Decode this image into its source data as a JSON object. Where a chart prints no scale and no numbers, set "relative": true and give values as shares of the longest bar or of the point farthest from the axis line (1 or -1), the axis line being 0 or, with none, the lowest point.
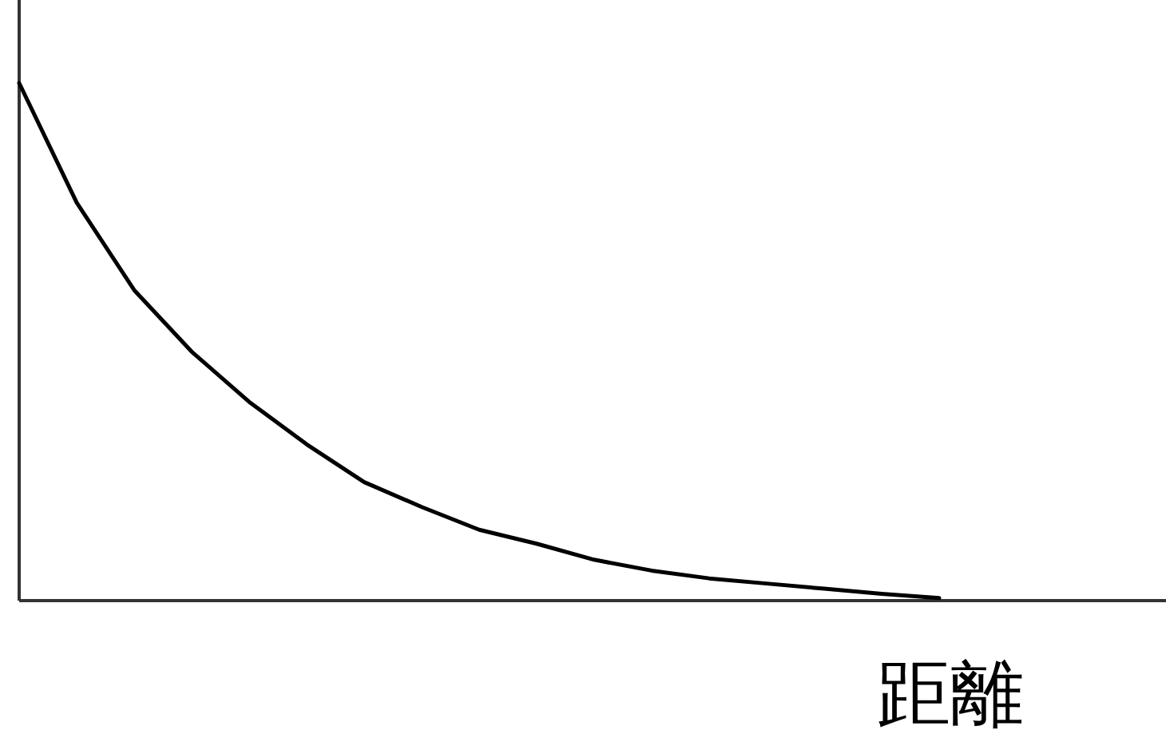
{
  "chart_data": {
    "type": "line",
    "relative": true,
    "xlabel": "距離",
    "color": "#000000",
    "categories": [
      null,
      null,
      null,
      null,
      null,
      null,
      null,
      null,
      null,
      null,
      null,
      null,
      null,
      null,
      null,
      null,
      null,
      null,
      null,
      null
    ],
    "values": [
      1.0,
      0.769,
      0.6,
      0.481,
      0.384,
      0.302,
      0.229,
      0.181,
      0.137,
      0.11,
      0.079,
      0.058,
      0.043,
      0.033,
      0.023,
      0.013,
      0.005,
      null,
      null,
      null
    ]
  }
}
